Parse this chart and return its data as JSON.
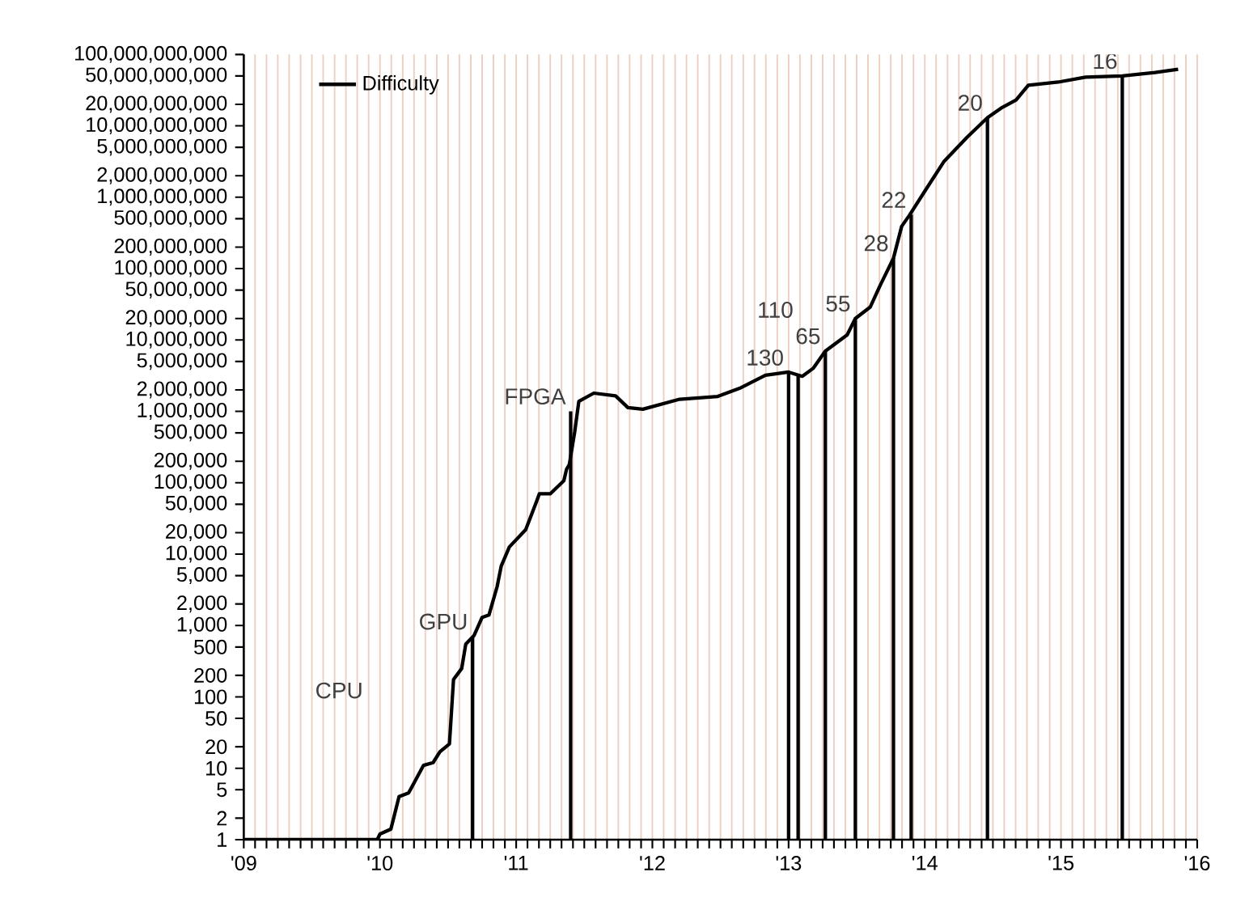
{
  "chart_data": {
    "type": "line",
    "log": "y",
    "grid": "x",
    "legend": "top left",
    "marker": "none",
    "line_style": "solid",
    "xlim": [
      2009,
      2016
    ],
    "ylim": [
      1,
      100000000000
    ],
    "xticks": [
      {
        "value": 2009,
        "label": "'09"
      },
      {
        "value": 2009.083,
        "label": null
      },
      {
        "value": 2009.167,
        "label": null
      },
      {
        "value": 2009.25,
        "label": null
      },
      {
        "value": 2009.333,
        "label": null
      },
      {
        "value": 2009.417,
        "label": null
      },
      {
        "value": 2009.5,
        "label": null
      },
      {
        "value": 2009.583,
        "label": null
      },
      {
        "value": 2009.667,
        "label": null
      },
      {
        "value": 2009.75,
        "label": null
      },
      {
        "value": 2009.833,
        "label": null
      },
      {
        "value": 2009.917,
        "label": null
      },
      {
        "value": 2010,
        "label": "'10"
      },
      {
        "value": 2010.083,
        "label": null
      },
      {
        "value": 2010.167,
        "label": null
      },
      {
        "value": 2010.25,
        "label": null
      },
      {
        "value": 2010.333,
        "label": null
      },
      {
        "value": 2010.417,
        "label": null
      },
      {
        "value": 2010.5,
        "label": null
      },
      {
        "value": 2010.583,
        "label": null
      },
      {
        "value": 2010.667,
        "label": null
      },
      {
        "value": 2010.75,
        "label": null
      },
      {
        "value": 2010.833,
        "label": null
      },
      {
        "value": 2010.917,
        "label": null
      },
      {
        "value": 2011,
        "label": "'11"
      },
      {
        "value": 2011.083,
        "label": null
      },
      {
        "value": 2011.167,
        "label": null
      },
      {
        "value": 2011.25,
        "label": null
      },
      {
        "value": 2011.333,
        "label": null
      },
      {
        "value": 2011.417,
        "label": null
      },
      {
        "value": 2011.5,
        "label": null
      },
      {
        "value": 2011.583,
        "label": null
      },
      {
        "value": 2011.667,
        "label": null
      },
      {
        "value": 2011.75,
        "label": null
      },
      {
        "value": 2011.833,
        "label": null
      },
      {
        "value": 2011.917,
        "label": null
      },
      {
        "value": 2012,
        "label": "'12"
      },
      {
        "value": 2012.083,
        "label": null
      },
      {
        "value": 2012.167,
        "label": null
      },
      {
        "value": 2012.25,
        "label": null
      },
      {
        "value": 2012.333,
        "label": null
      },
      {
        "value": 2012.417,
        "label": null
      },
      {
        "value": 2012.5,
        "label": null
      },
      {
        "value": 2012.583,
        "label": null
      },
      {
        "value": 2012.667,
        "label": null
      },
      {
        "value": 2012.75,
        "label": null
      },
      {
        "value": 2012.833,
        "label": null
      },
      {
        "value": 2012.917,
        "label": null
      },
      {
        "value": 2013,
        "label": "'13"
      },
      {
        "value": 2013.083,
        "label": null
      },
      {
        "value": 2013.167,
        "label": null
      },
      {
        "value": 2013.25,
        "label": null
      },
      {
        "value": 2013.333,
        "label": null
      },
      {
        "value": 2013.417,
        "label": null
      },
      {
        "value": 2013.5,
        "label": null
      },
      {
        "value": 2013.583,
        "label": null
      },
      {
        "value": 2013.667,
        "label": null
      },
      {
        "value": 2013.75,
        "label": null
      },
      {
        "value": 2013.833,
        "label": null
      },
      {
        "value": 2013.917,
        "label": null
      },
      {
        "value": 2014,
        "label": "'14"
      },
      {
        "value": 2014.083,
        "label": null
      },
      {
        "value": 2014.167,
        "label": null
      },
      {
        "value": 2014.25,
        "label": null
      },
      {
        "value": 2014.333,
        "label": null
      },
      {
        "value": 2014.417,
        "label": null
      },
      {
        "value": 2014.5,
        "label": null
      },
      {
        "value": 2014.583,
        "label": null
      },
      {
        "value": 2014.667,
        "label": null
      },
      {
        "value": 2014.75,
        "label": null
      },
      {
        "value": 2014.833,
        "label": null
      },
      {
        "value": 2014.917,
        "label": null
      },
      {
        "value": 2015,
        "label": "'15"
      },
      {
        "value": 2015.083,
        "label": null
      },
      {
        "value": 2015.167,
        "label": null
      },
      {
        "value": 2015.25,
        "label": null
      },
      {
        "value": 2015.333,
        "label": null
      },
      {
        "value": 2015.417,
        "label": null
      },
      {
        "value": 2015.5,
        "label": null
      },
      {
        "value": 2015.583,
        "label": null
      },
      {
        "value": 2015.667,
        "label": null
      },
      {
        "value": 2015.75,
        "label": null
      },
      {
        "value": 2015.833,
        "label": null
      },
      {
        "value": 2015.917,
        "label": null
      },
      {
        "value": 2016,
        "label": "'16"
      }
    ],
    "yticks": [
      {
        "value": 1,
        "label": "1"
      },
      {
        "value": 2,
        "label": "2"
      },
      {
        "value": 5,
        "label": "5"
      },
      {
        "value": 10,
        "label": "10"
      },
      {
        "value": 20,
        "label": "20"
      },
      {
        "value": 50,
        "label": "50"
      },
      {
        "value": 100,
        "label": "100"
      },
      {
        "value": 200,
        "label": "200"
      },
      {
        "value": 500,
        "label": "500"
      },
      {
        "value": 1000,
        "label": "1,000"
      },
      {
        "value": 2000,
        "label": "2,000"
      },
      {
        "value": 5000,
        "label": "5,000"
      },
      {
        "value": 10000,
        "label": "10,000"
      },
      {
        "value": 20000,
        "label": "20,000"
      },
      {
        "value": 50000,
        "label": "50,000"
      },
      {
        "value": 100000,
        "label": "100,000"
      },
      {
        "value": 200000,
        "label": "200,000"
      },
      {
        "value": 500000,
        "label": "500,000"
      },
      {
        "value": 1000000,
        "label": "1,000,000"
      },
      {
        "value": 2000000,
        "label": "2,000,000"
      },
      {
        "value": 5000000,
        "label": "5,000,000"
      },
      {
        "value": 10000000,
        "label": "10,000,000"
      },
      {
        "value": 20000000,
        "label": "20,000,000"
      },
      {
        "value": 50000000,
        "label": "50,000,000"
      },
      {
        "value": 100000000,
        "label": "100,000,000"
      },
      {
        "value": 200000000,
        "label": "200,000,000"
      },
      {
        "value": 500000000,
        "label": "500,000,000"
      },
      {
        "value": 1000000000,
        "label": "1,000,000,000"
      },
      {
        "value": 2000000000,
        "label": "2,000,000,000"
      },
      {
        "value": 5000000000,
        "label": "5,000,000,000"
      },
      {
        "value": 10000000000,
        "label": "10,000,000,000"
      },
      {
        "value": 20000000000,
        "label": "20,000,000,000"
      },
      {
        "value": 50000000000,
        "label": "50,000,000,000"
      },
      {
        "value": 100000000000,
        "label": "100,000,000,000"
      }
    ],
    "series": [
      {
        "name": "Difficulty",
        "color": "#000000",
        "x": [
          2009,
          2009.98,
          2010.0,
          2010.08,
          2010.14,
          2010.21,
          2010.32,
          2010.39,
          2010.44,
          2010.51,
          2010.54,
          2010.6,
          2010.63,
          2010.69,
          2010.75,
          2010.8,
          2010.86,
          2010.89,
          2010.95,
          2011.07,
          2011.15,
          2011.17,
          2011.25,
          2011.35,
          2011.37,
          2011.39,
          2011.43,
          2011.46,
          2011.57,
          2011.73,
          2011.82,
          2011.93,
          2012.2,
          2012.48,
          2012.64,
          2012.83,
          2013.0,
          2013.1,
          2013.18,
          2013.27,
          2013.43,
          2013.49,
          2013.6,
          2013.67,
          2013.77,
          2013.83,
          2013.89,
          2014.01,
          2014.14,
          2014.31,
          2014.46,
          2014.56,
          2014.67,
          2014.76,
          2014.98,
          2015.18,
          2015.45,
          2015.69,
          2015.86
        ],
        "values": [
          1,
          1,
          1.2,
          1.4,
          4,
          4.5,
          11,
          12,
          17,
          22,
          175,
          250,
          550,
          720,
          1300,
          1400,
          3500,
          6800,
          12600,
          22000,
          55000,
          70000,
          70000,
          107000,
          155000,
          180000,
          520000,
          1380000,
          1800000,
          1650000,
          1130000,
          1070000,
          1480000,
          1620000,
          2100000,
          3200000,
          3550000,
          3100000,
          4000000,
          7000000,
          11800000,
          20000000,
          29000000,
          57000000,
          140000000,
          390000000,
          570000000,
          1300000000,
          3150000000,
          6900000000,
          13000000000,
          17700000000,
          23000000000,
          37000000000,
          41000000000,
          48000000000,
          50000000000,
          56000000000,
          62000000000
        ]
      },
      {
        "type": "bar",
        "color": "#000000",
        "x": [
          2010.68,
          2011.4,
          2013.0,
          2013.07,
          2013.27,
          2013.49,
          2013.77,
          2013.9,
          2014.46,
          2015.45
        ],
        "values": [
          700,
          1000000,
          3500000,
          3300000,
          7000000,
          20000000,
          140000000,
          570000000,
          13000000000,
          50000000000
        ]
      }
    ],
    "annotations": [
      "CPU",
      {
        "text": "GPU",
        "x": 2010.68,
        "y": 700
      },
      {
        "text": "FPGA",
        "x": 2011.4,
        "y": 1000000
      },
      {
        "text": "130",
        "x": 2013.0,
        "y": 3500000
      },
      {
        "text": "110",
        "x": 2013.07,
        "y": 3300000
      },
      {
        "text": "65",
        "x": 2013.27,
        "y": 7000000
      },
      {
        "text": "55",
        "x": 2013.49,
        "y": 20000000
      },
      {
        "text": "28",
        "x": 2013.77,
        "y": 140000000
      },
      {
        "text": "22",
        "x": 2013.9,
        "y": 570000000
      },
      {
        "text": "20",
        "x": 2014.46,
        "y": 13000000000
      },
      {
        "text": "16",
        "x": 2015.45,
        "y": 50000000000
      }
    ]
  }
}
